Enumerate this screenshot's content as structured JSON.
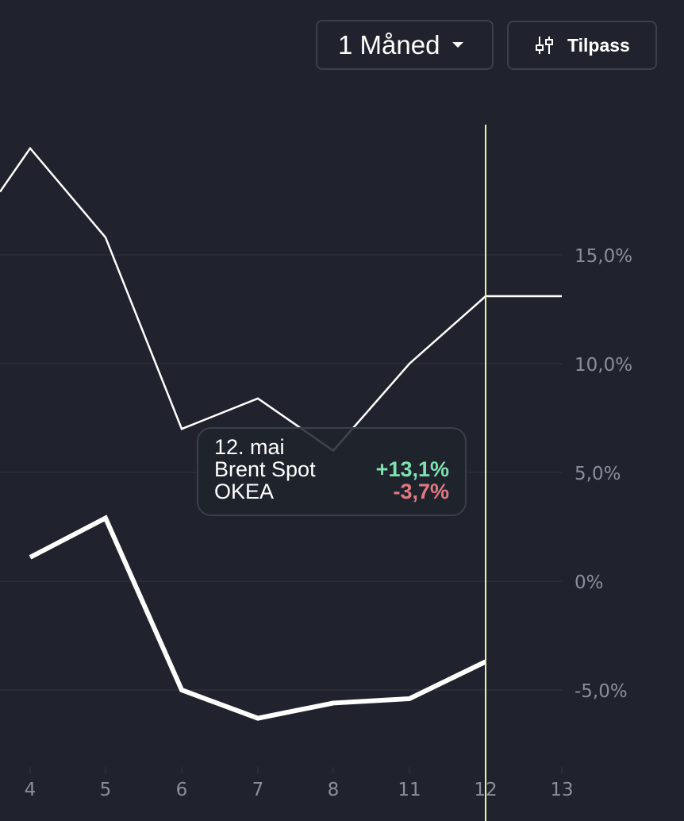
{
  "toolbar": {
    "period_label": "1 Måned",
    "customize_label": "Tilpass",
    "customize_icon": "sliders-icon",
    "period_icon": "caret-down-icon"
  },
  "tooltip": {
    "date": "12. mai",
    "rows": [
      {
        "name": "Brent Spot",
        "value": "+13,1%",
        "tone": "positive"
      },
      {
        "name": "OKEA",
        "value": "-3,7%",
        "tone": "negative"
      }
    ]
  },
  "colors": {
    "background": "#20232d",
    "grid": "#2c303b",
    "tick_text": "#8a8e9c",
    "crosshair": "#e4f5a8",
    "positive": "#7ee2b0",
    "negative": "#e07a82"
  },
  "chart_data": {
    "type": "line",
    "categories": [
      "4",
      "5",
      "6",
      "7",
      "8",
      "11",
      "12",
      "13"
    ],
    "y_ticks": [
      "-5,0%",
      "0%",
      "5,0%",
      "10,0%",
      "15,0%"
    ],
    "y_tick_values": [
      -5,
      0,
      5,
      10,
      15
    ],
    "ylim": [
      -8.5,
      21
    ],
    "selected_category": "12",
    "series": [
      {
        "name": "Brent Spot",
        "style": "thin",
        "values": [
          19.9,
          15.8,
          7.0,
          8.4,
          6.0,
          10.0,
          13.1,
          13.1
        ],
        "lead_in": 17.9
      },
      {
        "name": "OKEA",
        "style": "thick",
        "values": [
          1.1,
          2.9,
          -5.0,
          -6.3,
          -5.6,
          -5.4,
          -3.7,
          null
        ]
      }
    ]
  }
}
